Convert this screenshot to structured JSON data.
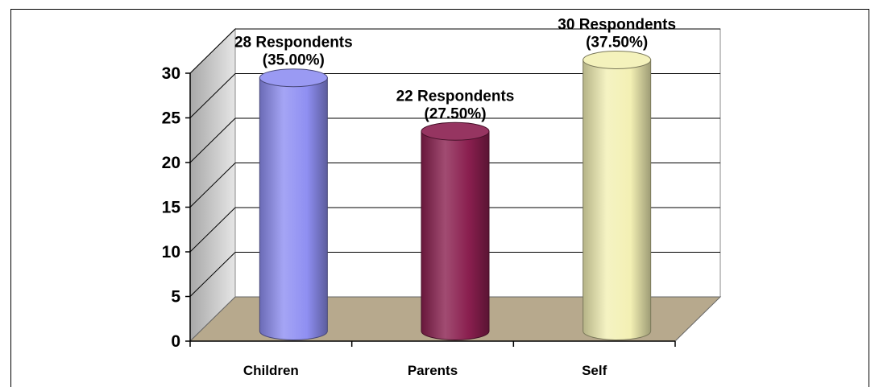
{
  "chart_data": {
    "type": "bar",
    "style": "3d-cylinder",
    "categories": [
      "Children",
      "Parents",
      "Self"
    ],
    "values": [
      28,
      22,
      30
    ],
    "data_labels": [
      [
        "28 Respondents",
        "(35.00%)"
      ],
      [
        "22 Respondents",
        "(27.50%)"
      ],
      [
        "30 Respondents",
        "(37.50%)"
      ]
    ],
    "bar_colors": [
      "#8f8ff2",
      "#8a1f4f",
      "#f3f0b4"
    ],
    "ylim": [
      0,
      30
    ],
    "yticks": [
      0,
      5,
      10,
      15,
      20,
      25,
      30
    ],
    "title": "",
    "xlabel": "",
    "ylabel": "",
    "grid": true,
    "floor_color": "#b7a98d",
    "wall_color": "#d4d4d4"
  }
}
